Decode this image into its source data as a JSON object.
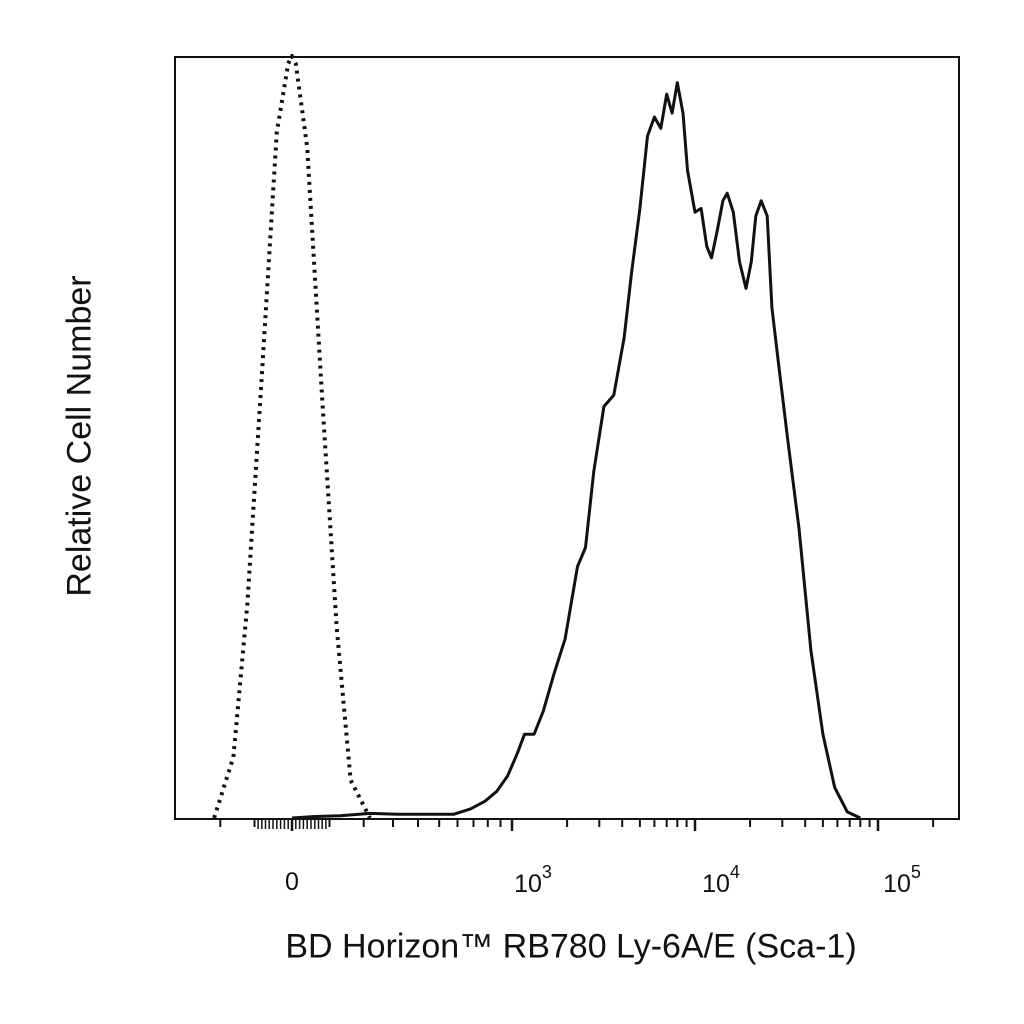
{
  "chart_data": {
    "type": "line",
    "title": "",
    "xlabel": "BD Horizon™ RB780 Ly-6A/E (Sca-1)",
    "ylabel": "Relative Cell Number",
    "x_scale": "biexponential",
    "x_tick_labels": [
      {
        "value": 0,
        "base": "0",
        "exp": ""
      },
      {
        "value": 1000,
        "base": "10",
        "exp": "3"
      },
      {
        "value": 10000,
        "base": "10",
        "exp": "4"
      },
      {
        "value": 100000,
        "base": "10",
        "exp": "5"
      }
    ],
    "xlim": [
      -200,
      220000
    ],
    "ylim": [
      0,
      100
    ],
    "grid": false,
    "legend": "none",
    "series": [
      {
        "style": "dotted",
        "color": "#111111",
        "x": [
          -220,
          -160,
          -120,
          -80,
          -40,
          -10,
          0,
          10,
          40,
          80,
          120,
          160,
          220
        ],
        "y": [
          0,
          8,
          28,
          58,
          90,
          99,
          100,
          99,
          88,
          55,
          25,
          5,
          0
        ]
      },
      {
        "style": "solid",
        "color": "#111111",
        "x": [
          0,
          60,
          130,
          220,
          320,
          420,
          500,
          580,
          680,
          780,
          870,
          960,
          1070,
          1170,
          1320,
          1480,
          1700,
          1950,
          2280,
          2520,
          2800,
          3180,
          3600,
          4100,
          4500,
          5000,
          5500,
          6000,
          6500,
          7000,
          7500,
          8000,
          8600,
          9100,
          10000,
          10800,
          11600,
          12300,
          13200,
          14200,
          15000,
          16200,
          17500,
          19000,
          20300,
          21500,
          23000,
          24800,
          26300,
          28500,
          32000,
          37000,
          43000,
          50000,
          58000,
          68000,
          80000
        ],
        "y": [
          0,
          0.2,
          0.3,
          0.6,
          0.5,
          0.5,
          0.5,
          0.5,
          1.2,
          2.2,
          3.5,
          5.5,
          8.5,
          11.0,
          11.0,
          14.0,
          19.0,
          23.5,
          33.0,
          35.5,
          45.5,
          54.0,
          55.5,
          63.0,
          71.5,
          80.0,
          89.5,
          92.0,
          90.5,
          95.0,
          92.5,
          96.5,
          92.5,
          85.0,
          79.5,
          80.0,
          75.0,
          73.5,
          77.0,
          81.0,
          82.0,
          79.5,
          73.0,
          69.5,
          73.0,
          79.0,
          81.0,
          79.0,
          67.0,
          60.0,
          50.0,
          38.0,
          22.0,
          11.0,
          4.0,
          0.8,
          0
        ]
      }
    ]
  }
}
